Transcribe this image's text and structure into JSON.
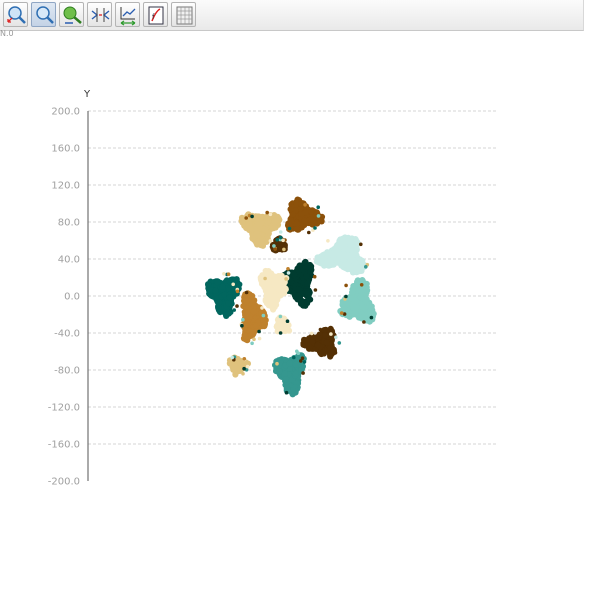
{
  "toolbar": {
    "buttons": [
      {
        "icon": "zoom-in-icon",
        "name": "zoom-in-button",
        "active": false
      },
      {
        "icon": "zoom-icon",
        "name": "zoom-button",
        "active": true
      },
      {
        "icon": "pan-icon",
        "name": "pan-button",
        "active": false
      },
      {
        "icon": "fit-axes-icon",
        "name": "fit-axes-button",
        "active": false
      },
      {
        "icon": "rescale-icon",
        "name": "rescale-button",
        "active": false
      },
      {
        "icon": "export-icon",
        "name": "export-button",
        "active": false
      },
      {
        "icon": "grid-icon",
        "name": "grid-button",
        "active": false
      }
    ]
  },
  "corner_label": "N.0",
  "chart_data": {
    "type": "scatter",
    "ylabel": "Y",
    "ylim": [
      -200,
      200
    ],
    "yticks": [
      "200.0",
      "160.0",
      "120.0",
      "80.0",
      "40.0",
      "0.0",
      "-40.0",
      "-80.0",
      "-120.0",
      "-160.0",
      "-200.0"
    ],
    "grid": true,
    "colors": {
      "grid": "#c8c8c8",
      "axis": "#555555",
      "tick_label": "#a0a0a0"
    },
    "clusters": [
      {
        "color": "#dfc27d",
        "cx": -25,
        "cy": 75,
        "rx": 22,
        "ry": 20
      },
      {
        "color": "#dfc27d",
        "cx": -50,
        "cy": -75,
        "rx": 11,
        "ry": 10
      },
      {
        "color": "#8c510a",
        "cx": 20,
        "cy": 86,
        "rx": 21,
        "ry": 18
      },
      {
        "color": "#543005",
        "cx": -5,
        "cy": 55,
        "rx": 8,
        "ry": 8
      },
      {
        "color": "#c7eae5",
        "cx": 64,
        "cy": 43,
        "rx": 28,
        "ry": 20
      },
      {
        "color": "#003c30",
        "cx": 16,
        "cy": 14,
        "rx": 19,
        "ry": 25
      },
      {
        "color": "#01665e",
        "cx": -65,
        "cy": 2,
        "rx": 18,
        "ry": 23
      },
      {
        "color": "#f6e8c3",
        "cx": -12,
        "cy": 8,
        "rx": 15,
        "ry": 25
      },
      {
        "color": "#bf812d",
        "cx": -34,
        "cy": -23,
        "rx": 15,
        "ry": 28
      },
      {
        "color": "#f6e8c3",
        "cx": -2,
        "cy": -32,
        "rx": 9,
        "ry": 10
      },
      {
        "color": "#80cdc1",
        "cx": 80,
        "cy": -8,
        "rx": 20,
        "ry": 25
      },
      {
        "color": "#543005",
        "cx": 41,
        "cy": -51,
        "rx": 20,
        "ry": 16
      },
      {
        "color": "#35978f",
        "cx": 7,
        "cy": -82,
        "rx": 17,
        "ry": 23
      }
    ]
  }
}
